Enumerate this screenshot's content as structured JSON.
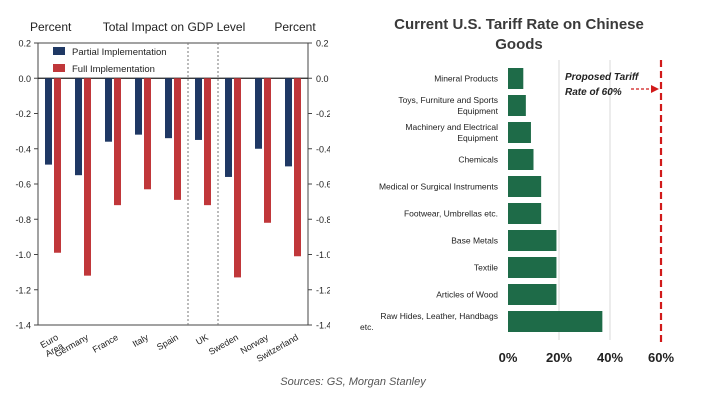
{
  "left": {
    "title": "Total Impact on GDP Level",
    "left_unit": "Percent",
    "right_unit": "Percent",
    "legend_placement": "top-left",
    "colors": {
      "partial": "#1f3864",
      "full": "#c0373a"
    },
    "chart_data": {
      "type": "bar",
      "categories": [
        "Euro Area",
        "Germany",
        "France",
        "Italy",
        "Spain",
        "UK",
        "Sweden",
        "Norway",
        "Switzerland"
      ],
      "series": [
        {
          "name": "Partial Implementation",
          "values": [
            -0.49,
            -0.55,
            -0.36,
            -0.32,
            -0.34,
            -0.35,
            -0.56,
            -0.4,
            -0.5
          ]
        },
        {
          "name": "Full Implementation",
          "values": [
            -0.99,
            -1.12,
            -0.72,
            -0.63,
            -0.69,
            -0.72,
            -1.13,
            -0.82,
            -1.01
          ]
        }
      ],
      "ylim": [
        -1.4,
        0.2
      ],
      "yticks": [
        "0.2",
        "0.0",
        "-0.2",
        "-0.4",
        "-0.6",
        "-0.8",
        "-1.0",
        "-1.2",
        "-1.4"
      ],
      "ytick_values": [
        0.2,
        0.0,
        -0.2,
        -0.4,
        -0.6,
        -0.8,
        -1.0,
        -1.2,
        -1.4
      ],
      "dividers_after": [
        "Spain",
        "UK"
      ]
    }
  },
  "right": {
    "title_line1": "Current U.S. Tariff Rate on Chinese",
    "title_line2": "Goods",
    "bar_color": "#1e6b48",
    "line_color": "#d11a1a",
    "annotation_line1": "Proposed Tariff",
    "annotation_line2": "Rate of 60%",
    "chart_data": {
      "type": "bar",
      "orientation": "horizontal",
      "categories": [
        [
          "Mineral Products"
        ],
        [
          "Toys, Furniture and Sports",
          "Equipment"
        ],
        [
          "Machinery and Electrical",
          "Equipment"
        ],
        [
          "Chemicals"
        ],
        [
          "Medical or Surgical Instruments"
        ],
        [
          "Footwear, Umbrellas etc."
        ],
        [
          "Base Metals"
        ],
        [
          "Textile"
        ],
        [
          "Articles of Wood"
        ],
        [
          "Raw Hides, Leather, Handbags",
          "etc."
        ]
      ],
      "values": [
        6,
        7,
        9,
        10,
        13,
        13,
        19,
        19,
        19,
        37
      ],
      "xlim": [
        0,
        60
      ],
      "xticks": [
        "0%",
        "20%",
        "40%",
        "60%"
      ],
      "xtick_values": [
        0,
        20,
        40,
        60
      ],
      "reference_line": 60
    }
  },
  "sources": "Sources: GS, Morgan Stanley"
}
